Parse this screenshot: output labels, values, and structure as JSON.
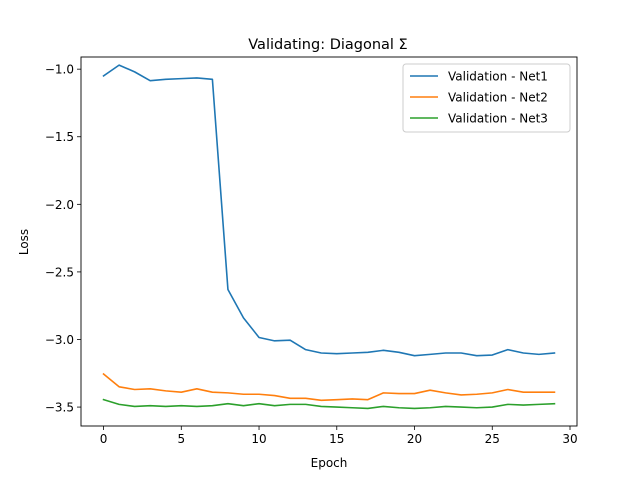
{
  "chart_data": {
    "type": "line",
    "title": "Validating: Diagonal Σ",
    "xlabel": "Epoch",
    "ylabel": "Loss",
    "xlim": [
      -1.45,
      30.45
    ],
    "ylim": [
      -3.64,
      -0.91
    ],
    "xticks": [
      0,
      5,
      10,
      15,
      20,
      25,
      30
    ],
    "xtick_labels": [
      "0",
      "5",
      "10",
      "15",
      "20",
      "25",
      "30"
    ],
    "yticks": [
      -1.0,
      -1.5,
      -2.0,
      -2.5,
      -3.0,
      -3.5
    ],
    "ytick_labels": [
      "−1.0",
      "−1.5",
      "−2.0",
      "−2.5",
      "−3.0",
      "−3.5"
    ],
    "grid": false,
    "legend_position": "upper right",
    "x": [
      0,
      1,
      2,
      3,
      4,
      5,
      6,
      7,
      8,
      9,
      10,
      11,
      12,
      13,
      14,
      15,
      16,
      17,
      18,
      19,
      20,
      21,
      22,
      23,
      24,
      25,
      26,
      27,
      28,
      29
    ],
    "series": [
      {
        "name": "Validation - Net1",
        "color": "#1f77b4",
        "values": [
          -1.05,
          -0.97,
          -1.02,
          -1.085,
          -1.075,
          -1.07,
          -1.065,
          -1.075,
          -2.63,
          -2.84,
          -2.985,
          -3.01,
          -3.005,
          -3.075,
          -3.1,
          -3.105,
          -3.1,
          -3.095,
          -3.08,
          -3.095,
          -3.12,
          -3.11,
          -3.1,
          -3.1,
          -3.12,
          -3.115,
          -3.075,
          -3.1,
          -3.11,
          -3.1
        ]
      },
      {
        "name": "Validation - Net2",
        "color": "#ff7f0e",
        "values": [
          -3.255,
          -3.35,
          -3.37,
          -3.365,
          -3.38,
          -3.39,
          -3.365,
          -3.39,
          -3.395,
          -3.405,
          -3.405,
          -3.415,
          -3.435,
          -3.435,
          -3.45,
          -3.445,
          -3.44,
          -3.445,
          -3.395,
          -3.4,
          -3.4,
          -3.375,
          -3.395,
          -3.41,
          -3.405,
          -3.395,
          -3.37,
          -3.39,
          -3.39,
          -3.39
        ]
      },
      {
        "name": "Validation - Net3",
        "color": "#2ca02c",
        "values": [
          -3.445,
          -3.48,
          -3.495,
          -3.49,
          -3.495,
          -3.49,
          -3.495,
          -3.49,
          -3.475,
          -3.49,
          -3.475,
          -3.49,
          -3.48,
          -3.48,
          -3.495,
          -3.5,
          -3.505,
          -3.51,
          -3.495,
          -3.505,
          -3.51,
          -3.505,
          -3.495,
          -3.5,
          -3.505,
          -3.5,
          -3.48,
          -3.485,
          -3.48,
          -3.475
        ]
      }
    ]
  }
}
